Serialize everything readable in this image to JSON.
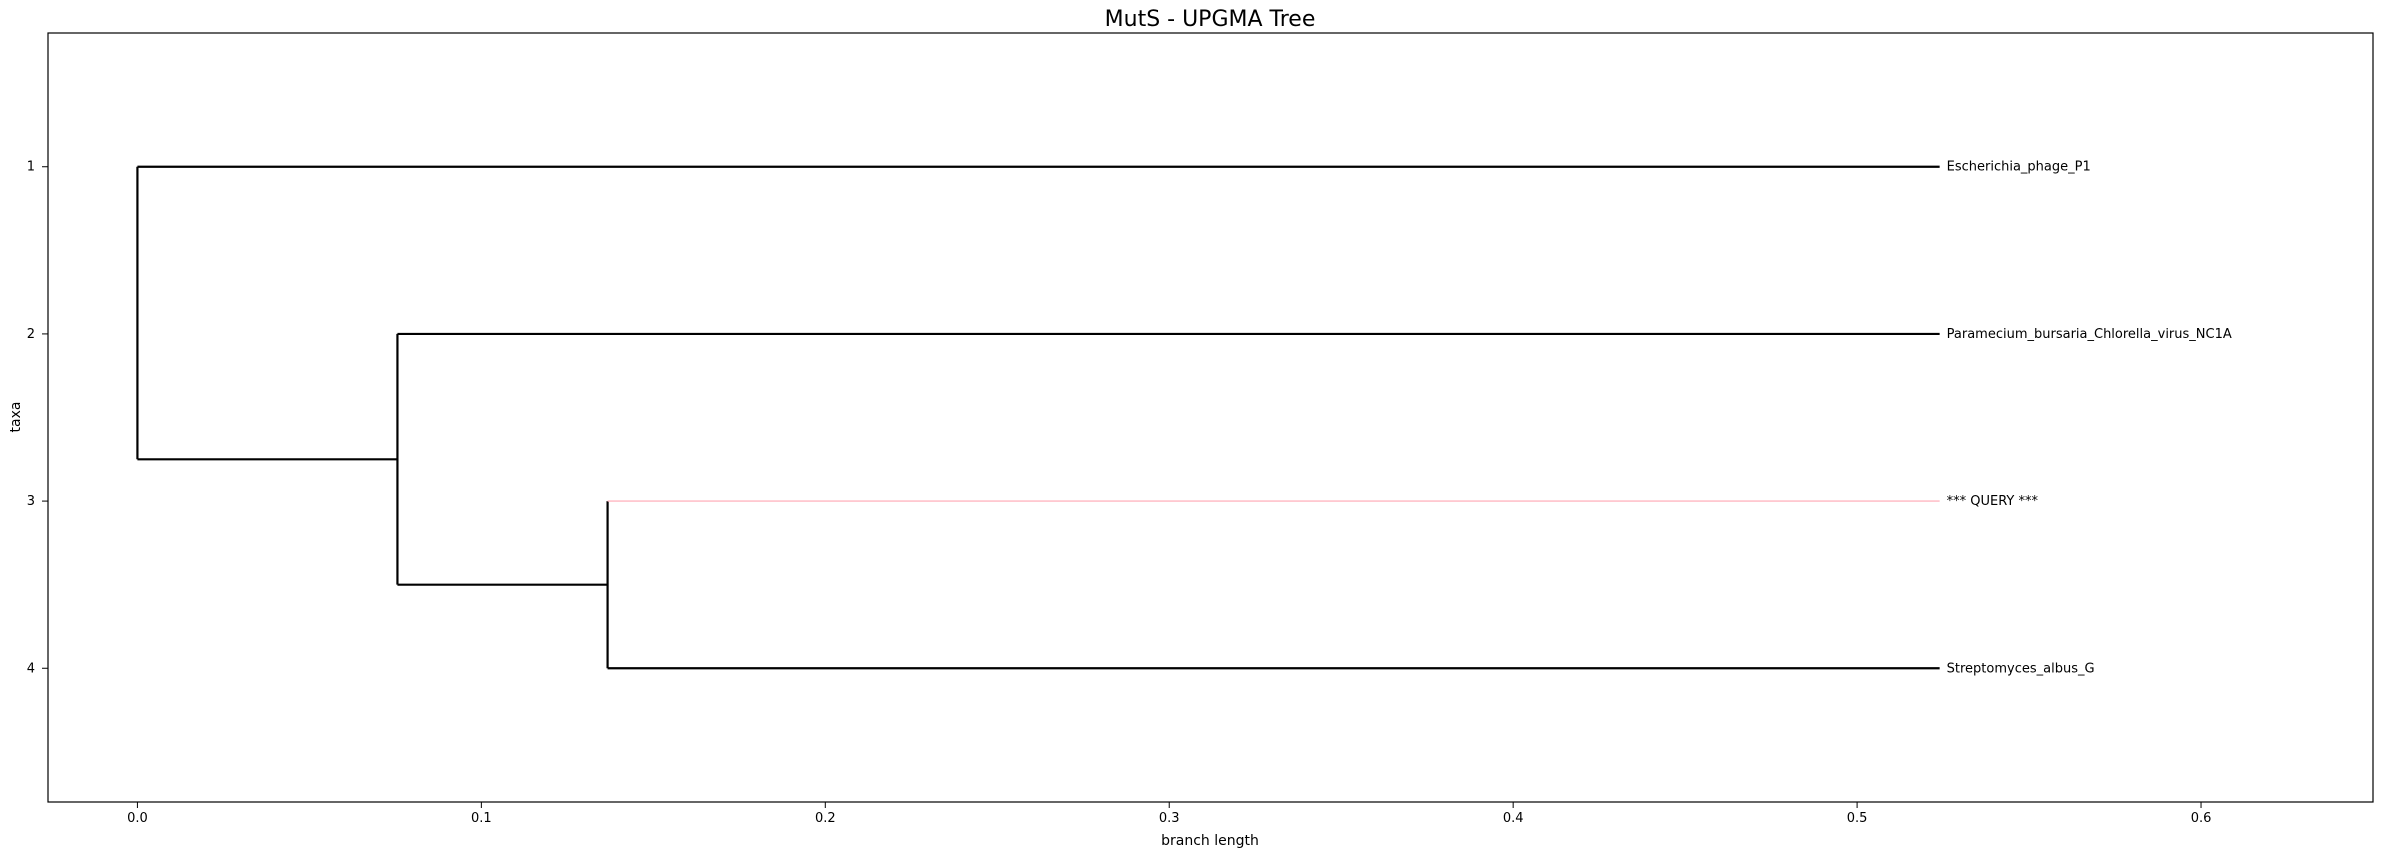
{
  "chart_data": {
    "type": "dendrogram",
    "title": "MutS - UPGMA Tree",
    "xlabel": "branch length",
    "ylabel": "taxa",
    "xlim": [
      -0.026,
      0.65
    ],
    "ylim": [
      4.8,
      0.2
    ],
    "grid": false,
    "x_ticks": [
      {
        "value": 0.0,
        "label": "0.0"
      },
      {
        "value": 0.1,
        "label": "0.1"
      },
      {
        "value": 0.2,
        "label": "0.2"
      },
      {
        "value": 0.3,
        "label": "0.3"
      },
      {
        "value": 0.4,
        "label": "0.4"
      },
      {
        "value": 0.5,
        "label": "0.5"
      },
      {
        "value": 0.6,
        "label": "0.6"
      }
    ],
    "y_ticks": [
      {
        "value": 1,
        "label": "1"
      },
      {
        "value": 2,
        "label": "2"
      },
      {
        "value": 3,
        "label": "3"
      },
      {
        "value": 4,
        "label": "4"
      }
    ],
    "leaves": [
      {
        "name": "Escherichia_phage_P1",
        "y": 1,
        "x_start": 0.0,
        "x_end": 0.524,
        "color": "#000000"
      },
      {
        "name": "Paramecium_bursaria_Chlorella_virus_NC1A",
        "y": 2,
        "x_start": 0.0756,
        "x_end": 0.524,
        "color": "#000000"
      },
      {
        "name": "*** QUERY ***",
        "y": 3,
        "x_start": 0.1367,
        "x_end": 0.524,
        "color": "#ffb6c1"
      },
      {
        "name": "Streptomyces_albus_G",
        "y": 4,
        "x_start": 0.1367,
        "x_end": 0.524,
        "color": "#000000"
      }
    ],
    "internal_branches": [
      {
        "y": 2.75,
        "x_start": 0.0,
        "x_end": 0.0756,
        "color": "#000000"
      },
      {
        "y": 3.5,
        "x_start": 0.0756,
        "x_end": 0.1367,
        "color": "#000000"
      }
    ],
    "connectors": [
      {
        "x": 0.0,
        "y_start": 1,
        "y_end": 2.75,
        "color": "#000000"
      },
      {
        "x": 0.0756,
        "y_start": 2,
        "y_end": 3.5,
        "color": "#000000"
      },
      {
        "x": 0.1367,
        "y_start": 3,
        "y_end": 4,
        "color": "#000000"
      }
    ]
  }
}
